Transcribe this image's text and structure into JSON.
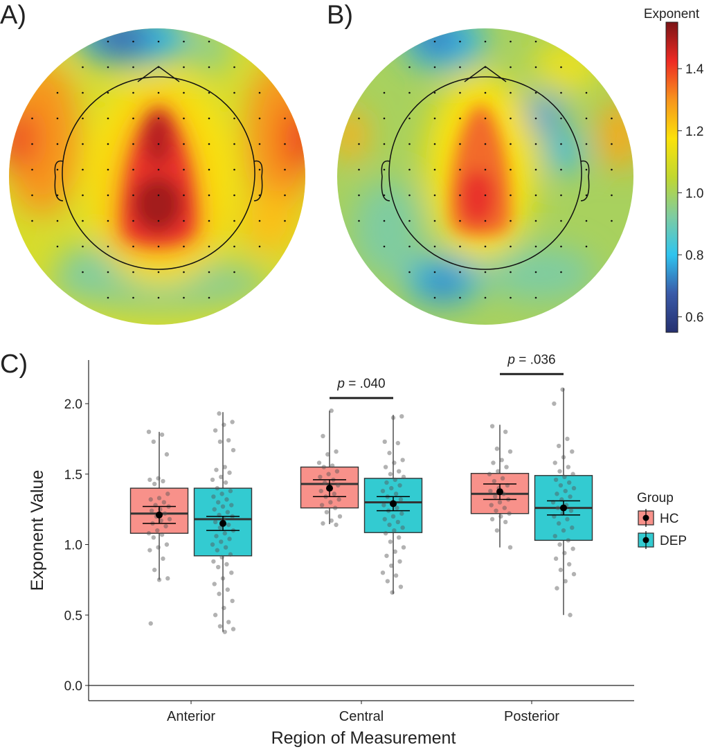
{
  "panel_labels": {
    "a": "A)",
    "b": "B)",
    "c": "C)"
  },
  "colorbar": {
    "title": "Exponent",
    "range": [
      0.55,
      1.55
    ],
    "ticks": [
      "0.6",
      "0.8",
      "1.0",
      "1.2",
      "1.4"
    ],
    "tick_values": [
      0.6,
      0.8,
      1.0,
      1.2,
      1.4
    ],
    "colors": [
      "#25306f",
      "#3a5aa8",
      "#2fc4ef",
      "#7fcca0",
      "#c1d730",
      "#fbe20a",
      "#f7941d",
      "#ee2a24",
      "#7a1416"
    ]
  },
  "topomaps": [
    {
      "id": "A",
      "description_label": "A)"
    },
    {
      "id": "B",
      "description_label": "B)"
    }
  ],
  "chart_data": {
    "type": "box",
    "xlabel": "Region of Measurement",
    "ylabel": "Exponent Value",
    "ylim": [
      -0.1,
      2.3
    ],
    "yticks": [
      "0.0",
      "0.5",
      "1.0",
      "1.5",
      "2.0"
    ],
    "ytick_values": [
      0,
      0.5,
      1.0,
      1.5,
      2.0
    ],
    "categories": [
      "Anterior",
      "Central",
      "Posterior"
    ],
    "legend": {
      "title": "Group",
      "position": "right",
      "entries": [
        "HC",
        "DEP"
      ]
    },
    "group_colors": {
      "HC": "#f8918a",
      "DEP": "#33cbd1"
    },
    "series": [
      {
        "name": "HC",
        "boxes": [
          {
            "q1": 1.08,
            "median": 1.22,
            "q3": 1.4,
            "whisker_low": 0.75,
            "whisker_high": 1.8,
            "mean": 1.21,
            "se_low": 1.15,
            "se_high": 1.27,
            "points": [
              1.8,
              1.78,
              1.73,
              1.64,
              1.47,
              1.46,
              1.45,
              1.43,
              1.36,
              1.33,
              1.32,
              1.3,
              1.28,
              1.27,
              1.25,
              1.24,
              1.22,
              1.2,
              1.18,
              1.17,
              1.15,
              1.13,
              1.1,
              1.08,
              1.07,
              1.05,
              1.0,
              0.98,
              0.96,
              0.9,
              0.82,
              0.76,
              0.75,
              0.44
            ]
          },
          {
            "q1": 1.26,
            "median": 1.43,
            "q3": 1.55,
            "whisker_low": 1.145,
            "whisker_high": 1.95,
            "mean": 1.4,
            "se_low": 1.34,
            "se_high": 1.46,
            "points": [
              1.95,
              1.77,
              1.66,
              1.64,
              1.58,
              1.56,
              1.55,
              1.52,
              1.5,
              1.48,
              1.46,
              1.44,
              1.42,
              1.4,
              1.38,
              1.36,
              1.34,
              1.32,
              1.3,
              1.28,
              1.26,
              1.23,
              1.2,
              1.17,
              1.15,
              1.14
            ]
          },
          {
            "q1": 1.22,
            "median": 1.36,
            "q3": 1.505,
            "whisker_low": 0.98,
            "whisker_high": 1.85,
            "mean": 1.375,
            "se_low": 1.32,
            "se_high": 1.43,
            "points": [
              1.84,
              1.8,
              1.68,
              1.66,
              1.6,
              1.58,
              1.55,
              1.52,
              1.5,
              1.47,
              1.45,
              1.42,
              1.4,
              1.38,
              1.36,
              1.34,
              1.32,
              1.3,
              1.28,
              1.26,
              1.24,
              1.22,
              1.2,
              1.18,
              1.16,
              1.1,
              0.98
            ]
          }
        ]
      },
      {
        "name": "DEP",
        "boxes": [
          {
            "q1": 0.92,
            "median": 1.18,
            "q3": 1.4,
            "whisker_low": 0.38,
            "whisker_high": 1.94,
            "mean": 1.15,
            "se_low": 1.1,
            "se_high": 1.2,
            "points": [
              1.93,
              1.87,
              1.85,
              1.81,
              1.74,
              1.73,
              1.67,
              1.55,
              1.53,
              1.51,
              1.48,
              1.46,
              1.44,
              1.4,
              1.38,
              1.36,
              1.34,
              1.32,
              1.3,
              1.28,
              1.27,
              1.25,
              1.23,
              1.21,
              1.2,
              1.18,
              1.16,
              1.14,
              1.12,
              1.1,
              1.08,
              1.06,
              1.04,
              1.02,
              1.0,
              0.98,
              0.96,
              0.93,
              0.91,
              0.88,
              0.86,
              0.84,
              0.8,
              0.76,
              0.72,
              0.68,
              0.65,
              0.6,
              0.55,
              0.5,
              0.45,
              0.42,
              0.4,
              0.38
            ]
          },
          {
            "q1": 1.085,
            "median": 1.3,
            "q3": 1.47,
            "whisker_low": 0.65,
            "whisker_high": 1.92,
            "mean": 1.29,
            "se_low": 1.24,
            "se_high": 1.34,
            "points": [
              1.91,
              1.9,
              1.73,
              1.72,
              1.65,
              1.6,
              1.58,
              1.55,
              1.52,
              1.5,
              1.48,
              1.46,
              1.44,
              1.42,
              1.4,
              1.38,
              1.36,
              1.34,
              1.32,
              1.3,
              1.28,
              1.26,
              1.24,
              1.22,
              1.2,
              1.18,
              1.16,
              1.14,
              1.12,
              1.1,
              1.08,
              1.05,
              1.02,
              0.98,
              0.95,
              0.92,
              0.88,
              0.85,
              0.8,
              0.78,
              0.74,
              0.7,
              0.66
            ]
          },
          {
            "q1": 1.03,
            "median": 1.26,
            "q3": 1.49,
            "whisker_low": 0.5,
            "whisker_high": 2.11,
            "mean": 1.26,
            "se_low": 1.21,
            "se_high": 1.31,
            "points": [
              2.1,
              2.0,
              1.75,
              1.7,
              1.66,
              1.62,
              1.58,
              1.55,
              1.52,
              1.5,
              1.48,
              1.46,
              1.44,
              1.42,
              1.4,
              1.38,
              1.36,
              1.34,
              1.32,
              1.3,
              1.28,
              1.26,
              1.24,
              1.22,
              1.2,
              1.18,
              1.15,
              1.12,
              1.1,
              1.06,
              1.03,
              1.0,
              0.97,
              0.94,
              0.9,
              0.86,
              0.82,
              0.79,
              0.74,
              0.69,
              0.5
            ]
          }
        ]
      }
    ],
    "annotations": [
      {
        "category": "Central",
        "p_italic": "p",
        "text": " = .040",
        "y": 2.04
      },
      {
        "category": "Posterior",
        "p_italic": "p",
        "text": " = .036",
        "y": 2.21
      }
    ]
  }
}
